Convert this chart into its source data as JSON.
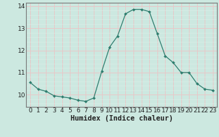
{
  "x": [
    0,
    1,
    2,
    3,
    4,
    5,
    6,
    7,
    8,
    9,
    10,
    11,
    12,
    13,
    14,
    15,
    16,
    17,
    18,
    19,
    20,
    21,
    22,
    23
  ],
  "y": [
    10.55,
    10.25,
    10.15,
    9.95,
    9.9,
    9.85,
    9.75,
    9.7,
    9.85,
    11.05,
    12.15,
    12.65,
    13.65,
    13.85,
    13.85,
    13.75,
    12.75,
    11.75,
    11.45,
    11.0,
    11.0,
    10.5,
    10.25,
    10.2
  ],
  "line_color": "#2e7d6e",
  "marker": "D",
  "marker_size": 2.0,
  "bg_color": "#cce8e0",
  "major_grid_color": "#e8c8c8",
  "minor_grid_color": "#ddeee8",
  "xlabel": "Humidex (Indice chaleur)",
  "xlim": [
    -0.5,
    23.5
  ],
  "ylim": [
    9.45,
    14.15
  ],
  "yticks": [
    10,
    11,
    12,
    13,
    14
  ],
  "xlabel_fontsize": 7.5,
  "tick_fontsize": 6.5
}
